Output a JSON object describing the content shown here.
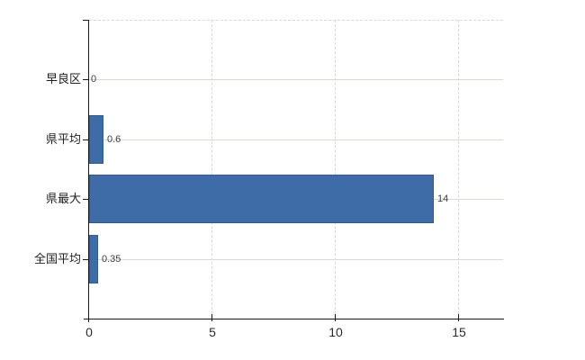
{
  "chart_data": {
    "type": "bar",
    "orientation": "horizontal",
    "title": "",
    "xlabel": "",
    "ylabel": "",
    "categories": [
      "早良区",
      "県平均",
      "県最大",
      "全国平均"
    ],
    "values": [
      0,
      0.6,
      14,
      0.35
    ],
    "value_labels": [
      "0",
      "0.6",
      "14",
      "0.35"
    ],
    "x_ticks": [
      0,
      5,
      10,
      15
    ],
    "x_tick_labels": [
      "0",
      "5",
      "10",
      "15"
    ],
    "xlim": [
      0,
      16.8
    ],
    "grid": "on",
    "legend": "none",
    "colors": {
      "bar_fill": "#3d6ca6",
      "bar_border": "#2e5b91",
      "grid_horizontal": "#d6dbd3",
      "grid_vertical": "#d4d9d2",
      "axis": "#1a1a1a",
      "category_label": "#1f1f1f",
      "value_label": "#3d3d3d",
      "tick_label": "#2b2b2b",
      "background": "#ffffff"
    }
  }
}
